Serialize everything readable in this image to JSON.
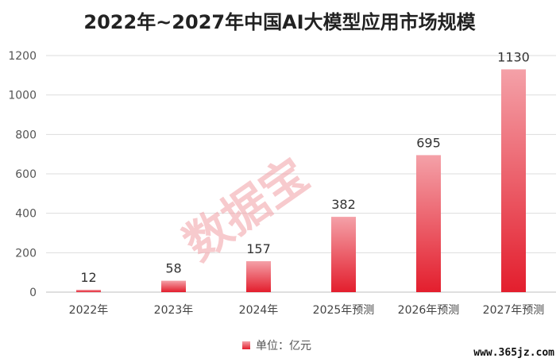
{
  "chart_data": {
    "type": "bar",
    "title": "2022年~2027年中国AI大模型应用市场规模",
    "categories": [
      "2022年",
      "2023年",
      "2024年",
      "2025年预测",
      "2026年预测",
      "2027年预测"
    ],
    "series": [
      {
        "name": "单位：亿元",
        "values": [
          12,
          58,
          157,
          382,
          695,
          1130
        ]
      }
    ],
    "ylim": [
      0,
      1200
    ],
    "yticks": [
      0,
      200,
      400,
      600,
      800,
      1000,
      1200
    ],
    "grid": true,
    "legend": "bottom",
    "bar_color_top": "#f4a1a8",
    "bar_color_bottom": "#e31e2d"
  },
  "watermark": "数据宝",
  "site": "www.365jz.com"
}
